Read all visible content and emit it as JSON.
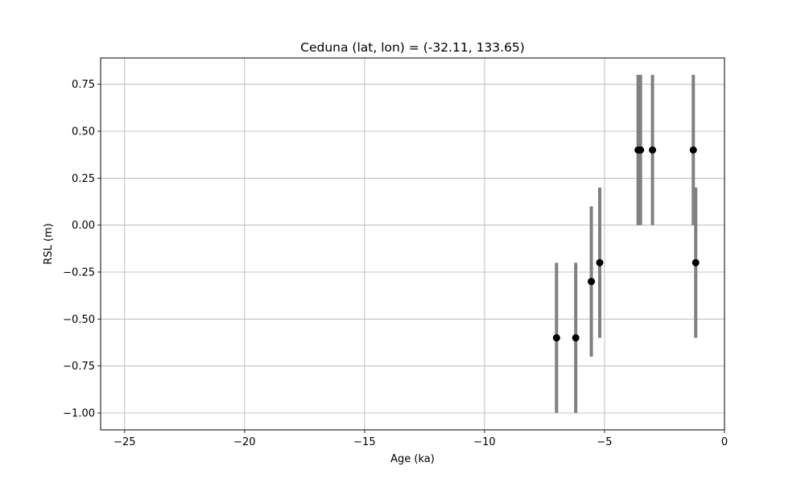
{
  "chart_data": {
    "type": "scatter",
    "title": "Ceduna (lat, lon) = (-32.11, 133.65)",
    "xlabel": "Age (ka)",
    "ylabel": "RSL (m)",
    "xlim": [
      -26,
      0
    ],
    "ylim": [
      -1.09,
      0.89
    ],
    "grid": true,
    "x_ticks": [
      -25,
      -20,
      -15,
      -10,
      -5,
      0
    ],
    "x_tick_labels": [
      "−25",
      "−20",
      "−15",
      "−10",
      "−5",
      "0"
    ],
    "y_ticks": [
      0.75,
      0.5,
      0.25,
      0.0,
      -0.25,
      -0.5,
      -0.75,
      -1.0
    ],
    "y_tick_labels": [
      "0.75",
      "0.50",
      "0.25",
      "0.00",
      "−0.25",
      "−0.50",
      "−0.75",
      "−1.00"
    ],
    "colors": {
      "point": "#000000",
      "errorbar": "#808080",
      "grid": "#b0b0b0"
    },
    "points": [
      {
        "x": -7.0,
        "y": -0.6,
        "ymin": -1.0,
        "ymax": -0.2
      },
      {
        "x": -6.2,
        "y": -0.6,
        "ymin": -1.0,
        "ymax": -0.2
      },
      {
        "x": -5.55,
        "y": -0.3,
        "ymin": -0.7,
        "ymax": 0.1
      },
      {
        "x": -5.2,
        "y": -0.2,
        "ymin": -0.6,
        "ymax": 0.2
      },
      {
        "x": -3.6,
        "y": 0.4,
        "ymin": 0.0,
        "ymax": 0.8
      },
      {
        "x": -3.5,
        "y": 0.4,
        "ymin": 0.0,
        "ymax": 0.8
      },
      {
        "x": -3.0,
        "y": 0.4,
        "ymin": 0.0,
        "ymax": 0.8
      },
      {
        "x": -1.3,
        "y": 0.4,
        "ymin": 0.0,
        "ymax": 0.8
      },
      {
        "x": -1.2,
        "y": -0.2,
        "ymin": -0.6,
        "ymax": 0.2
      }
    ]
  }
}
